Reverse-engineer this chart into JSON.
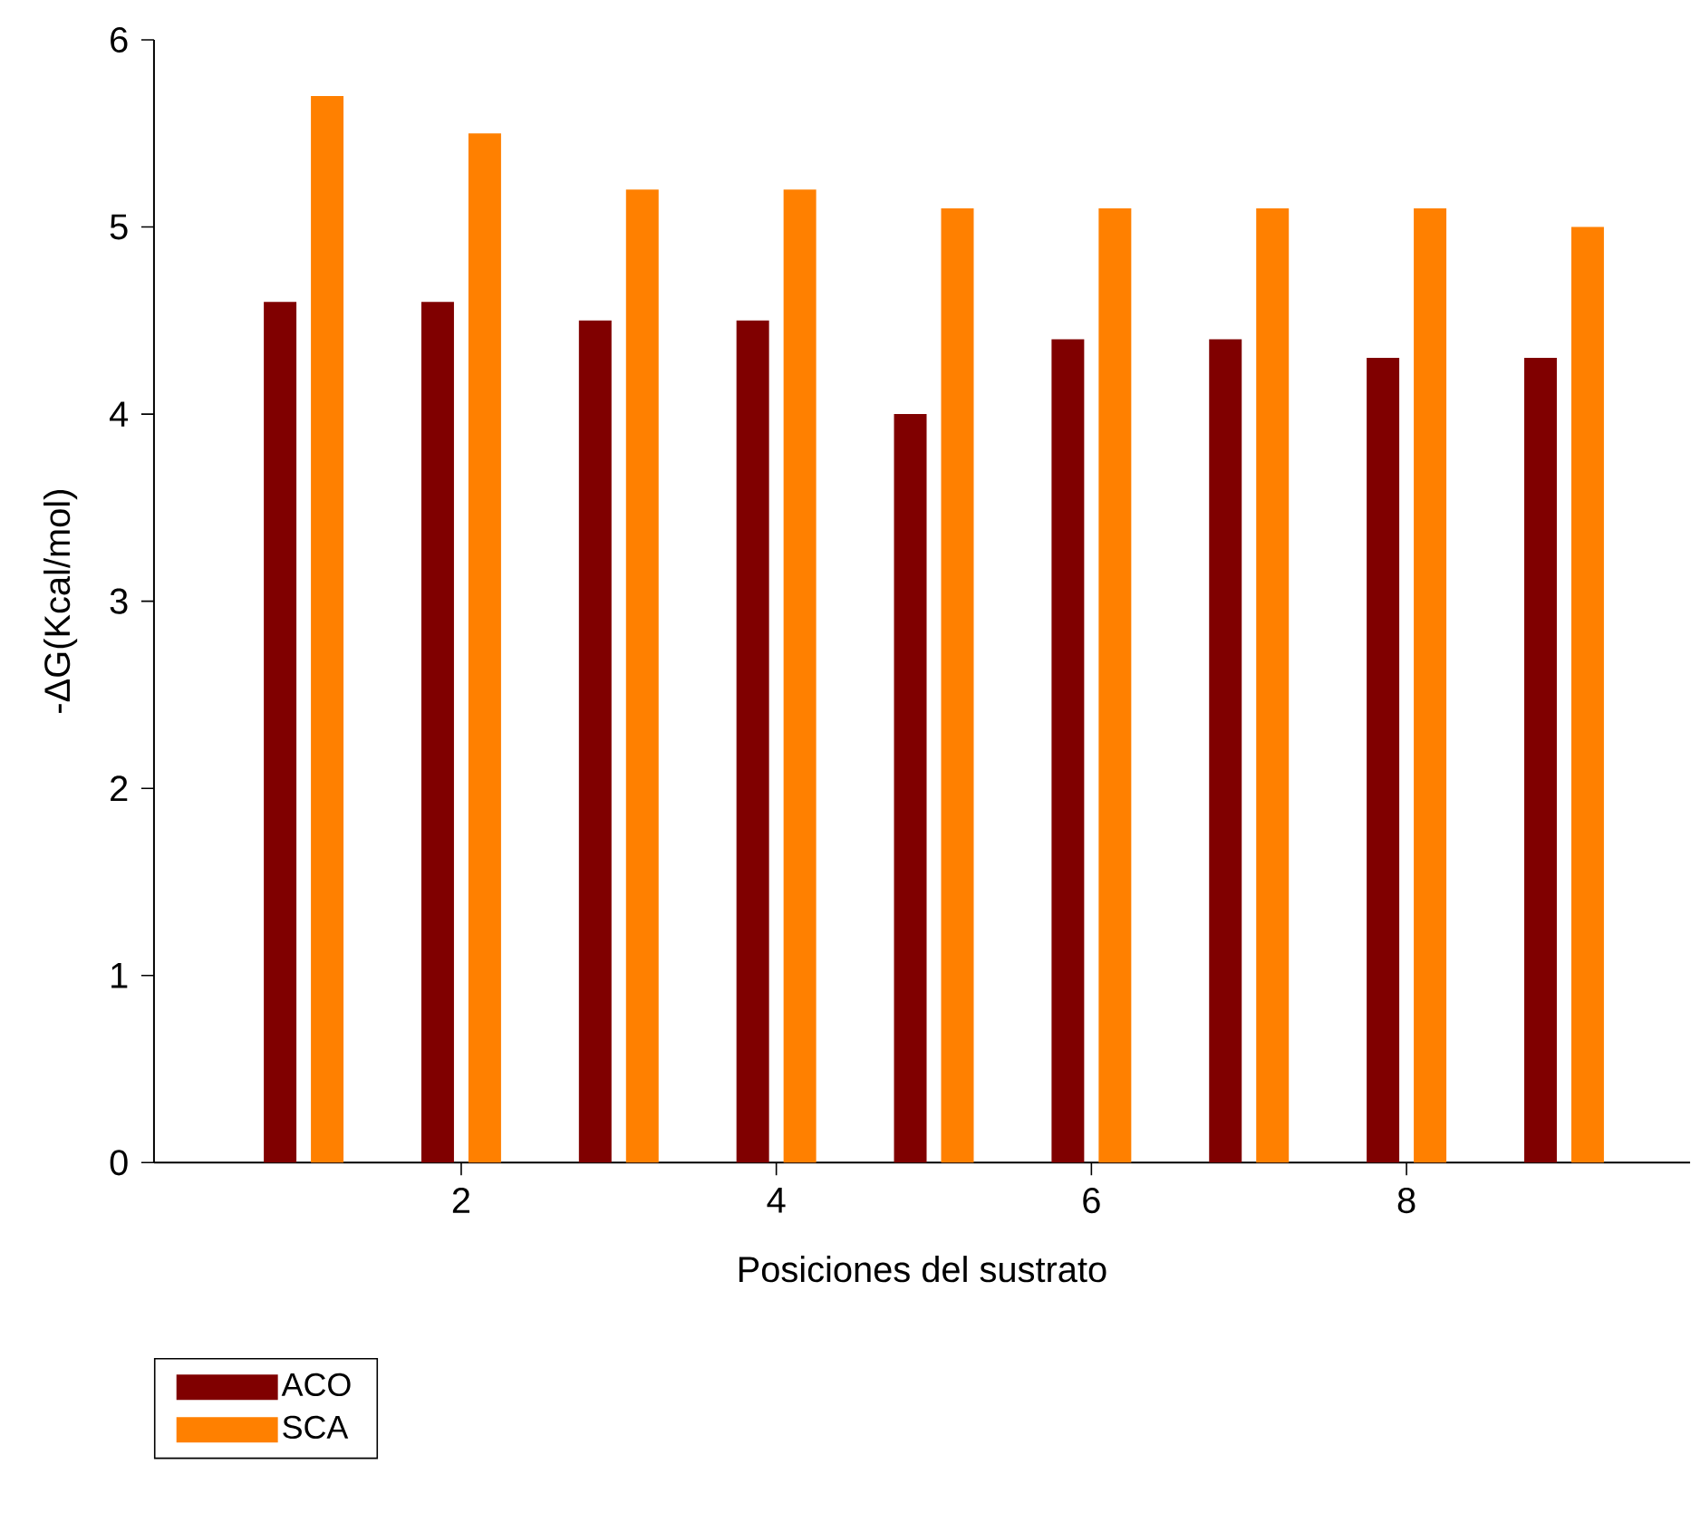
{
  "chart_data": {
    "type": "bar",
    "xlabel": "Posiciones del sustrato",
    "ylabel": "-ΔG(Kcal/mol)",
    "x": [
      1,
      2,
      3,
      4,
      5,
      6,
      7,
      8,
      9
    ],
    "series": [
      {
        "name": "ACO",
        "color": "#800000",
        "values": [
          4.6,
          4.6,
          4.5,
          4.5,
          4.0,
          4.4,
          4.4,
          4.3,
          4.3
        ]
      },
      {
        "name": "SCA",
        "color": "#ff8000",
        "values": [
          5.7,
          5.5,
          5.2,
          5.2,
          5.1,
          5.1,
          5.1,
          5.1,
          5.0
        ]
      }
    ],
    "xlim": [
      0.05,
      9.8
    ],
    "xticks": [
      2,
      4,
      6,
      8
    ],
    "ylim": [
      0,
      6
    ],
    "yticks": [
      0,
      1,
      2,
      3,
      4,
      5,
      6
    ],
    "grid": false,
    "legend": "bottom left"
  }
}
